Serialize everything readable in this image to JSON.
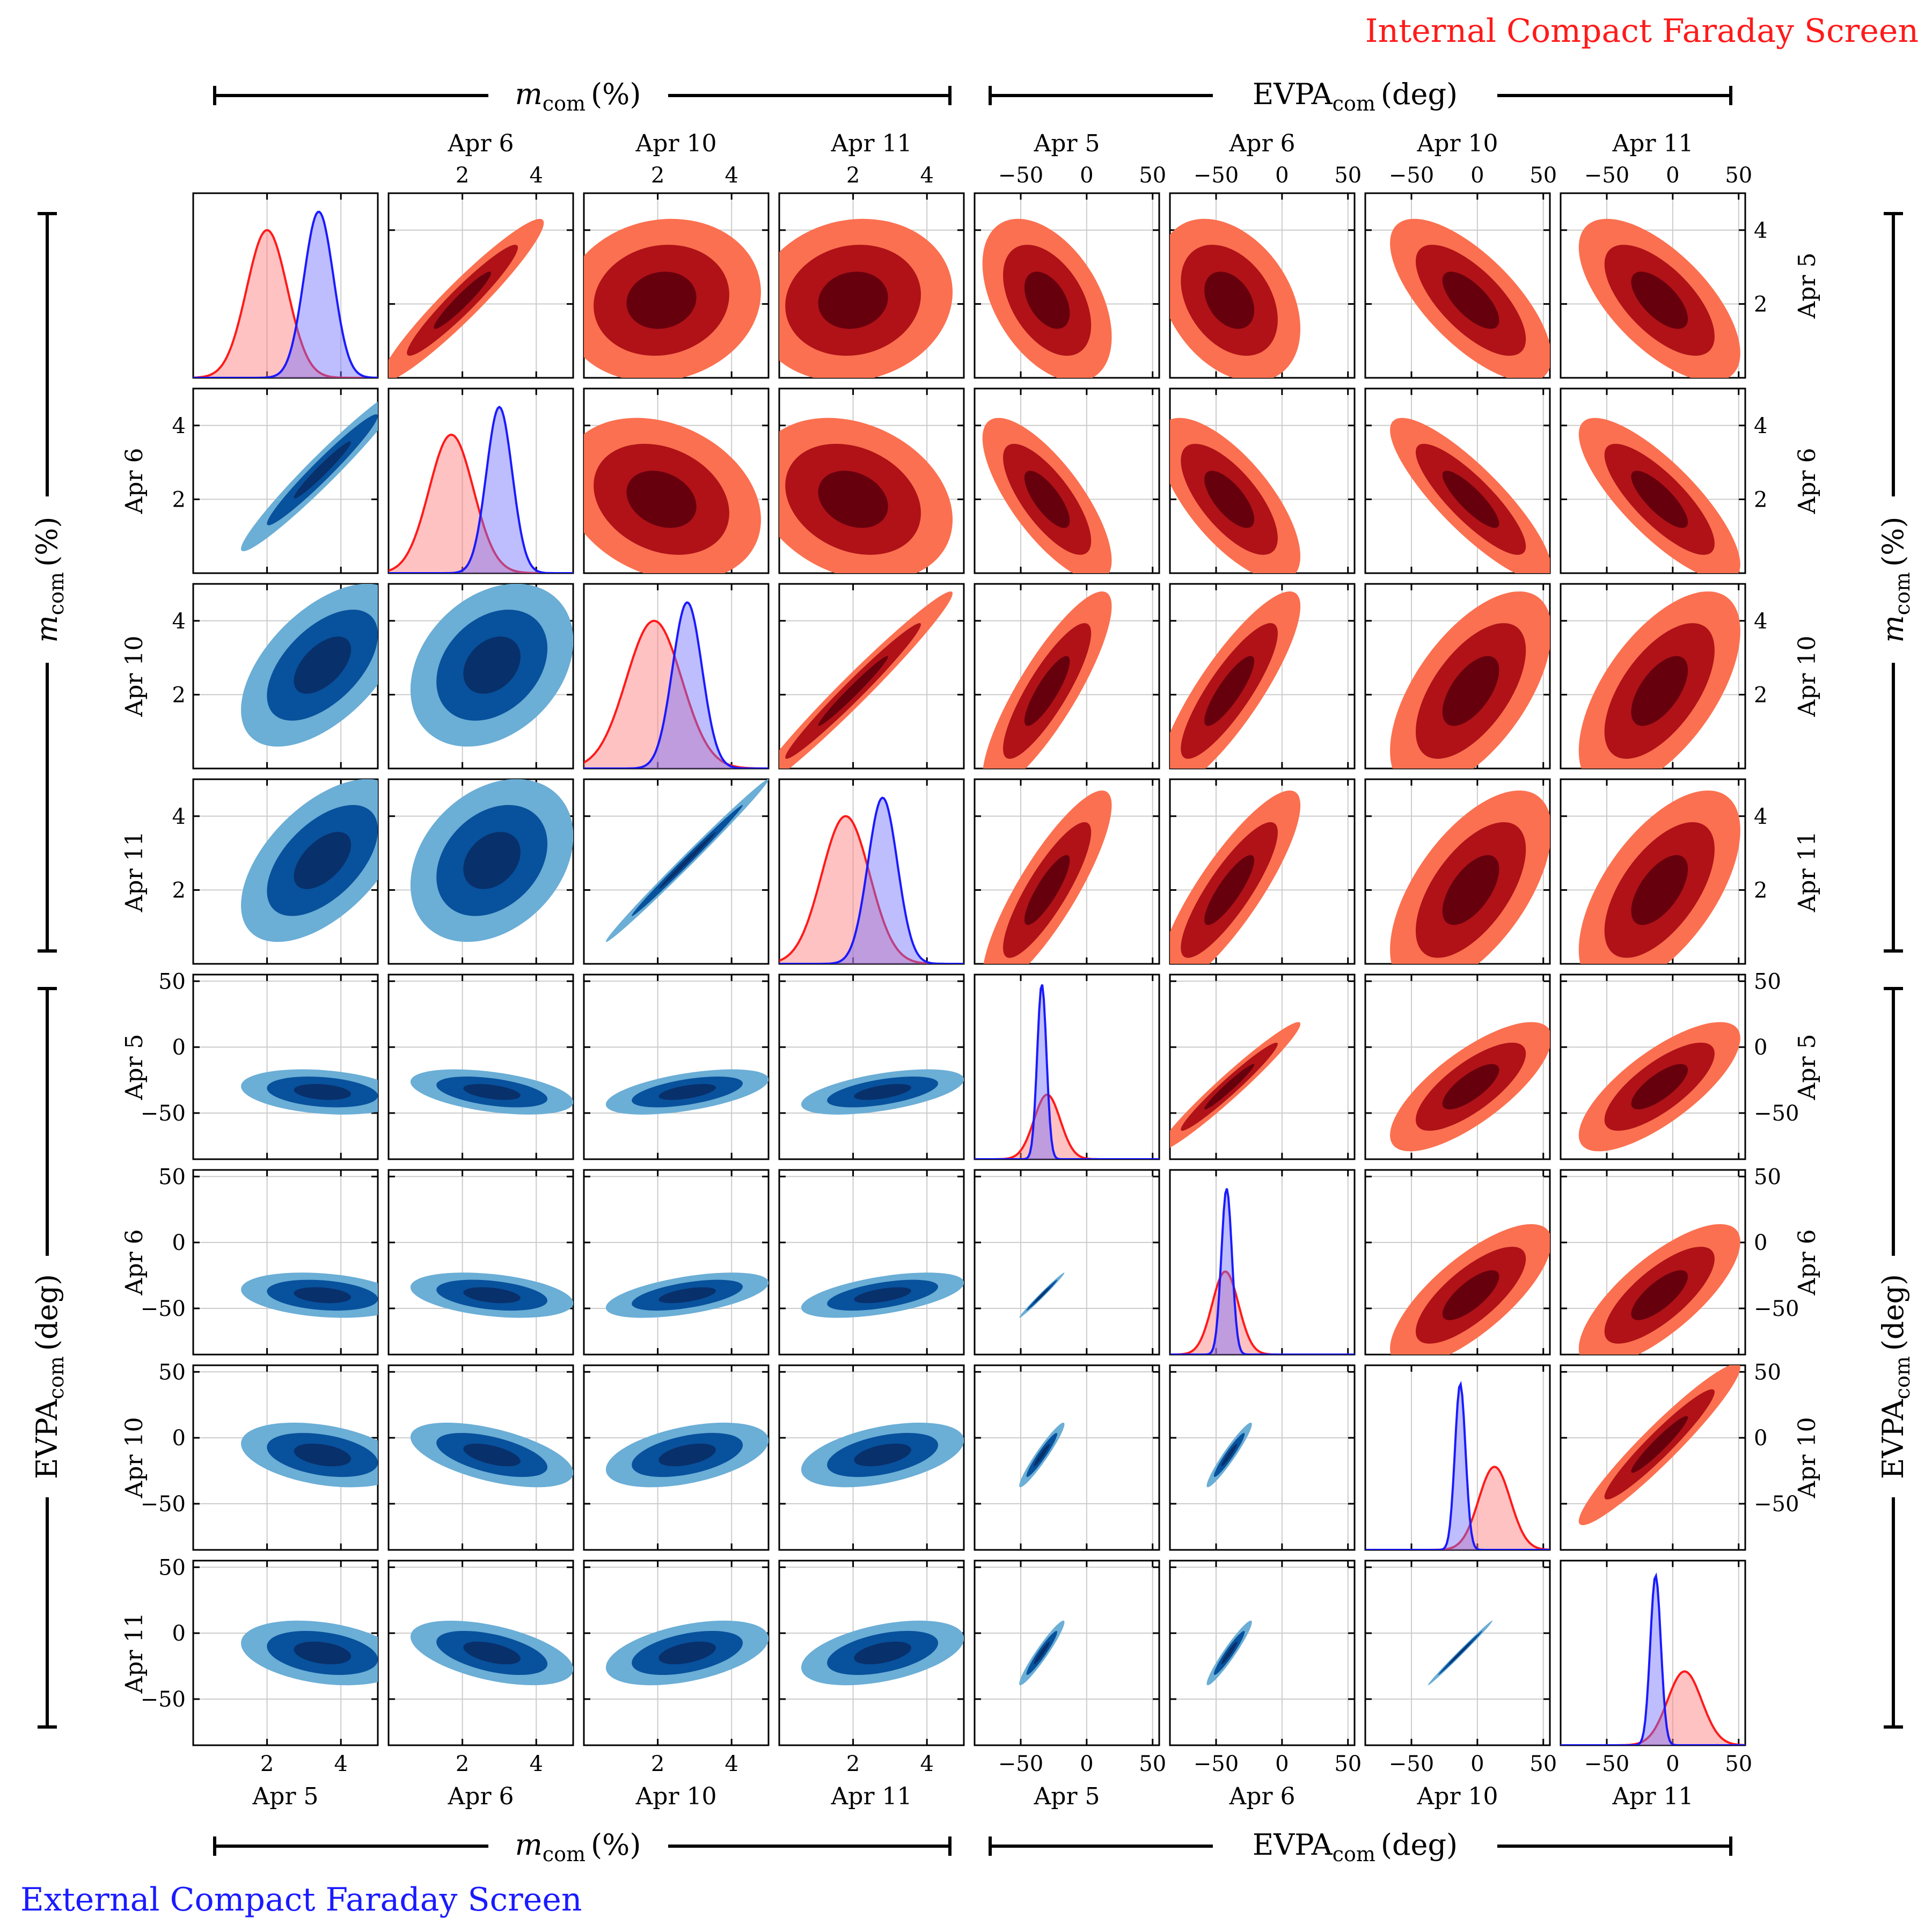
{
  "figure": {
    "title_internal": "Internal Compact Faraday Screen",
    "title_external": "External Compact Faraday Screen",
    "internal_color": "#ff1a1a",
    "external_color": "#1a1aff",
    "group_label_m": "m",
    "group_label_m_sub": "com",
    "group_label_m_unit": "(%)",
    "group_label_evpa": "EVPA",
    "group_label_evpa_sub": "com",
    "group_label_evpa_unit": "(deg)"
  },
  "chart_data": {
    "type": "corner",
    "title_upper": "Internal Compact Faraday Screen",
    "title_lower": "External Compact Faraday Screen",
    "epochs": [
      "Apr 5",
      "Apr 6",
      "Apr 10",
      "Apr 11"
    ],
    "parameters": [
      {
        "symbol": "m_com",
        "unit": "%",
        "ticks": [
          2,
          4
        ],
        "range": [
          0,
          5
        ]
      },
      {
        "symbol": "EVPA_com",
        "unit": "deg",
        "ticks": [
          -50,
          0,
          50
        ],
        "range": [
          -85,
          55
        ]
      }
    ],
    "variables": [
      {
        "label": "Apr 5",
        "param": "m",
        "range": [
          0,
          5
        ],
        "ticks": [
          2,
          4
        ],
        "tick_labels": [
          "2",
          "4"
        ]
      },
      {
        "label": "Apr 6",
        "param": "m",
        "range": [
          0,
          5
        ],
        "ticks": [
          2,
          4
        ],
        "tick_labels": [
          "2",
          "4"
        ]
      },
      {
        "label": "Apr 10",
        "param": "m",
        "range": [
          0,
          5
        ],
        "ticks": [
          2,
          4
        ],
        "tick_labels": [
          "2",
          "4"
        ]
      },
      {
        "label": "Apr 11",
        "param": "m",
        "range": [
          0,
          5
        ],
        "ticks": [
          2,
          4
        ],
        "tick_labels": [
          "2",
          "4"
        ]
      },
      {
        "label": "Apr 5",
        "param": "evpa",
        "range": [
          -85,
          55
        ],
        "ticks": [
          -50,
          0,
          50
        ],
        "tick_labels": [
          "−50",
          "0",
          "50"
        ]
      },
      {
        "label": "Apr 6",
        "param": "evpa",
        "range": [
          -85,
          55
        ],
        "ticks": [
          -50,
          0,
          50
        ],
        "tick_labels": [
          "−50",
          "0",
          "50"
        ]
      },
      {
        "label": "Apr 10",
        "param": "evpa",
        "range": [
          -85,
          55
        ],
        "ticks": [
          -50,
          0,
          50
        ],
        "tick_labels": [
          "−50",
          "0",
          "50"
        ]
      },
      {
        "label": "Apr 11",
        "param": "evpa",
        "range": [
          -85,
          55
        ],
        "ticks": [
          -50,
          0,
          50
        ],
        "tick_labels": [
          "−50",
          "0",
          "50"
        ]
      }
    ],
    "internal": {
      "color": "#ff1a1a",
      "contour_colors": [
        "#fb7050",
        "#b01218",
        "#67000d"
      ],
      "marginals": [
        {
          "mean": 2.0,
          "sd": 0.55,
          "peak": 0.8
        },
        {
          "mean": 1.7,
          "sd": 0.6,
          "peak": 0.75
        },
        {
          "mean": 1.9,
          "sd": 0.75,
          "peak": 0.8
        },
        {
          "mean": 1.8,
          "sd": 0.65,
          "peak": 0.8
        },
        {
          "mean": -30,
          "sd": 10,
          "peak": 0.35
        },
        {
          "mean": -43,
          "sd": 10,
          "peak": 0.45
        },
        {
          "mean": 13,
          "sd": 12,
          "peak": 0.45
        },
        {
          "mean": 9,
          "sd": 13,
          "peak": 0.4
        }
      ],
      "correlations": [
        [
          1,
          0.95,
          0.1,
          0.1,
          -0.45,
          -0.35,
          -0.7,
          -0.65
        ],
        [
          0.95,
          1,
          -0.25,
          -0.25,
          -0.75,
          -0.7,
          -0.85,
          -0.8
        ],
        [
          0.1,
          -0.25,
          1,
          0.98,
          0.85,
          0.85,
          0.6,
          0.6
        ],
        [
          0.1,
          -0.25,
          0.98,
          1,
          0.85,
          0.85,
          0.6,
          0.6
        ],
        [
          -0.45,
          -0.75,
          0.85,
          0.85,
          1,
          0.97,
          0.75,
          0.75
        ],
        [
          -0.35,
          -0.7,
          0.85,
          0.85,
          0.97,
          1,
          0.75,
          0.75
        ],
        [
          -0.7,
          -0.85,
          0.6,
          0.6,
          0.75,
          0.75,
          1,
          0.95
        ],
        [
          -0.65,
          -0.8,
          0.6,
          0.6,
          0.75,
          0.75,
          0.95,
          1
        ]
      ],
      "contour_means": [
        2.1,
        2.0,
        2.1,
        2.0,
        -30,
        -40,
        -5,
        -10
      ],
      "contour_sds": [
        0.9,
        0.9,
        1.1,
        1.1,
        20,
        22,
        25,
        25
      ]
    },
    "external": {
      "color": "#1a1aff",
      "contour_colors": [
        "#6baed6",
        "#08519c",
        "#08306b"
      ],
      "marginals": [
        {
          "mean": 3.4,
          "sd": 0.4,
          "peak": 0.9
        },
        {
          "mean": 3.0,
          "sd": 0.35,
          "peak": 0.9
        },
        {
          "mean": 2.8,
          "sd": 0.4,
          "peak": 0.9
        },
        {
          "mean": 2.8,
          "sd": 0.4,
          "peak": 0.9
        },
        {
          "mean": -34,
          "sd": 3.5,
          "peak": 0.95
        },
        {
          "mean": -42,
          "sd": 4.0,
          "peak": 0.9
        },
        {
          "mean": -13,
          "sd": 4.0,
          "peak": 0.9
        },
        {
          "mean": -13,
          "sd": 4.0,
          "peak": 0.92
        }
      ],
      "correlations": [
        [
          1,
          0.97,
          0.55,
          0.55,
          -0.25,
          -0.25,
          -0.35,
          -0.3
        ],
        [
          0.97,
          1,
          0.3,
          0.3,
          -0.45,
          -0.35,
          -0.55,
          -0.5
        ],
        [
          0.55,
          0.3,
          1,
          0.995,
          0.55,
          0.55,
          0.45,
          0.45
        ],
        [
          0.55,
          0.3,
          0.995,
          1,
          0.55,
          0.55,
          0.45,
          0.45
        ],
        [
          -0.25,
          -0.45,
          0.55,
          0.55,
          1,
          0.99,
          0.95,
          0.95
        ],
        [
          -0.25,
          -0.35,
          0.55,
          0.55,
          0.99,
          1,
          0.95,
          0.95
        ],
        [
          -0.35,
          -0.55,
          0.45,
          0.45,
          0.95,
          0.95,
          1,
          0.995
        ],
        [
          -0.3,
          -0.5,
          0.45,
          0.45,
          0.95,
          0.95,
          0.995,
          1
        ]
      ],
      "contour_means": [
        3.5,
        2.8,
        2.8,
        2.8,
        -34,
        -40,
        -13,
        -15
      ],
      "contour_sds": [
        0.9,
        0.9,
        0.9,
        0.9,
        7,
        7,
        10,
        10
      ]
    }
  }
}
